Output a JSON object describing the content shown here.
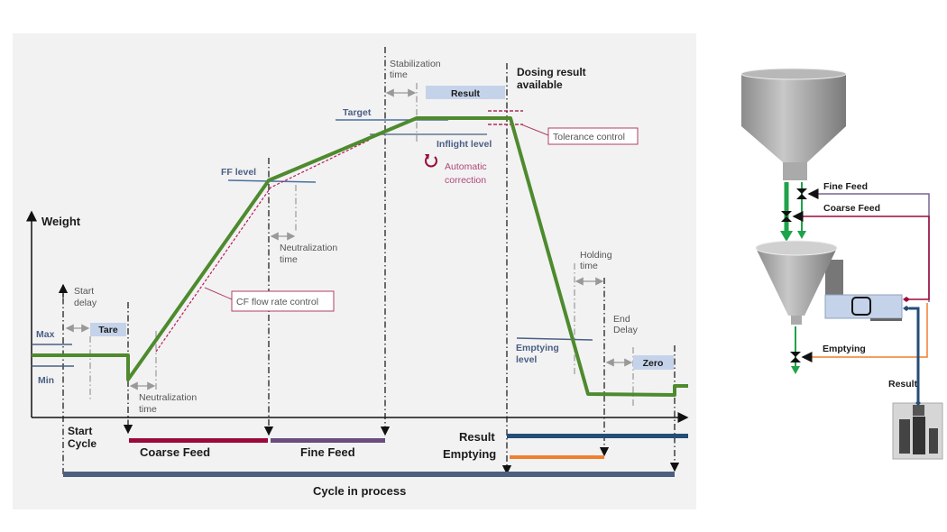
{
  "chart": {
    "y_axis_label": "Weight",
    "start_delay": [
      "Start",
      "delay"
    ],
    "max_label": "Max",
    "min_label": "Min",
    "tare_label": "Tare",
    "neutralization_1": [
      "Neutralization",
      "time"
    ],
    "neutralization_2": [
      "Neutralization",
      "time"
    ],
    "ff_level_label": "FF level",
    "cf_flow_rate_label": "CF flow rate control",
    "stabilization": [
      "Stabilization",
      "time"
    ],
    "result_box_label": "Result",
    "target_label": "Target",
    "inflight_label": "Inflight level",
    "auto_correction": [
      "Automatic",
      "correction"
    ],
    "dosing_result": [
      "Dosing result",
      "available"
    ],
    "tolerance_label": "Tolerance control",
    "emptying_level": [
      "Emptying",
      "level"
    ],
    "holding_time": [
      "Holding",
      "time"
    ],
    "end_delay": [
      "End",
      "Delay"
    ],
    "zero_label": "Zero",
    "start_cycle": [
      "Start",
      "Cycle"
    ],
    "coarse_feed_label": "Coarse Feed",
    "fine_feed_label": "Fine Feed",
    "result_label": "Result",
    "emptying_label": "Emptying",
    "cycle_label": "Cycle in process"
  },
  "machine": {
    "fine_feed_label": "Fine Feed",
    "coarse_feed_label": "Coarse Feed",
    "emptying_label": "Emptying",
    "result_label": "Result"
  },
  "colors": {
    "weight_curve": "#4e8a2e",
    "coarse_feed": "#9b0a3a",
    "fine_feed": "#6b4c80",
    "result": "#244d78",
    "emptying": "#f07f2e",
    "cycle": "#4b5f80",
    "box_fill": "#c5d3ea",
    "flow_green": "#1fa34a"
  }
}
